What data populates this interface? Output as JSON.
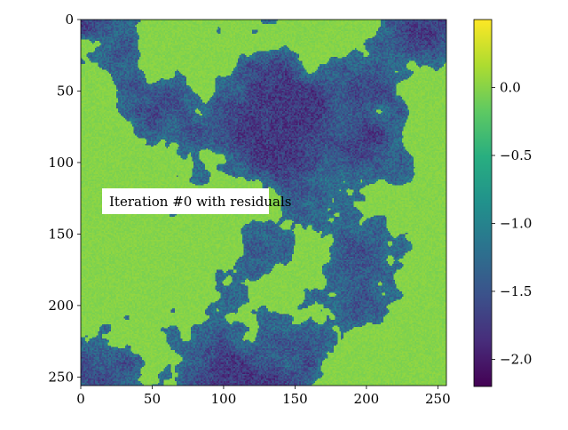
{
  "chart_data": {
    "type": "heatmap",
    "title": "",
    "annotation": "Iteration #0 with residuals",
    "colormap": "viridis",
    "x_range": [
      0,
      256
    ],
    "y_range": [
      0,
      256
    ],
    "y_inverted": true,
    "x_ticks": [
      "0",
      "50",
      "100",
      "150",
      "200",
      "250"
    ],
    "y_ticks": [
      "0",
      "50",
      "100",
      "150",
      "200",
      "250"
    ],
    "colorbar": {
      "range": [
        -2.2,
        0.5
      ],
      "ticks": [
        "−2.0",
        "−1.5",
        "−1.0",
        "−0.5",
        "0.0"
      ],
      "tick_values": [
        -2.0,
        -1.5,
        -1.0,
        -0.5,
        0.0
      ]
    },
    "field_values": {
      "high_level": 0.0,
      "low_level_mean": -1.5,
      "low_level_min": -2.1
    }
  }
}
